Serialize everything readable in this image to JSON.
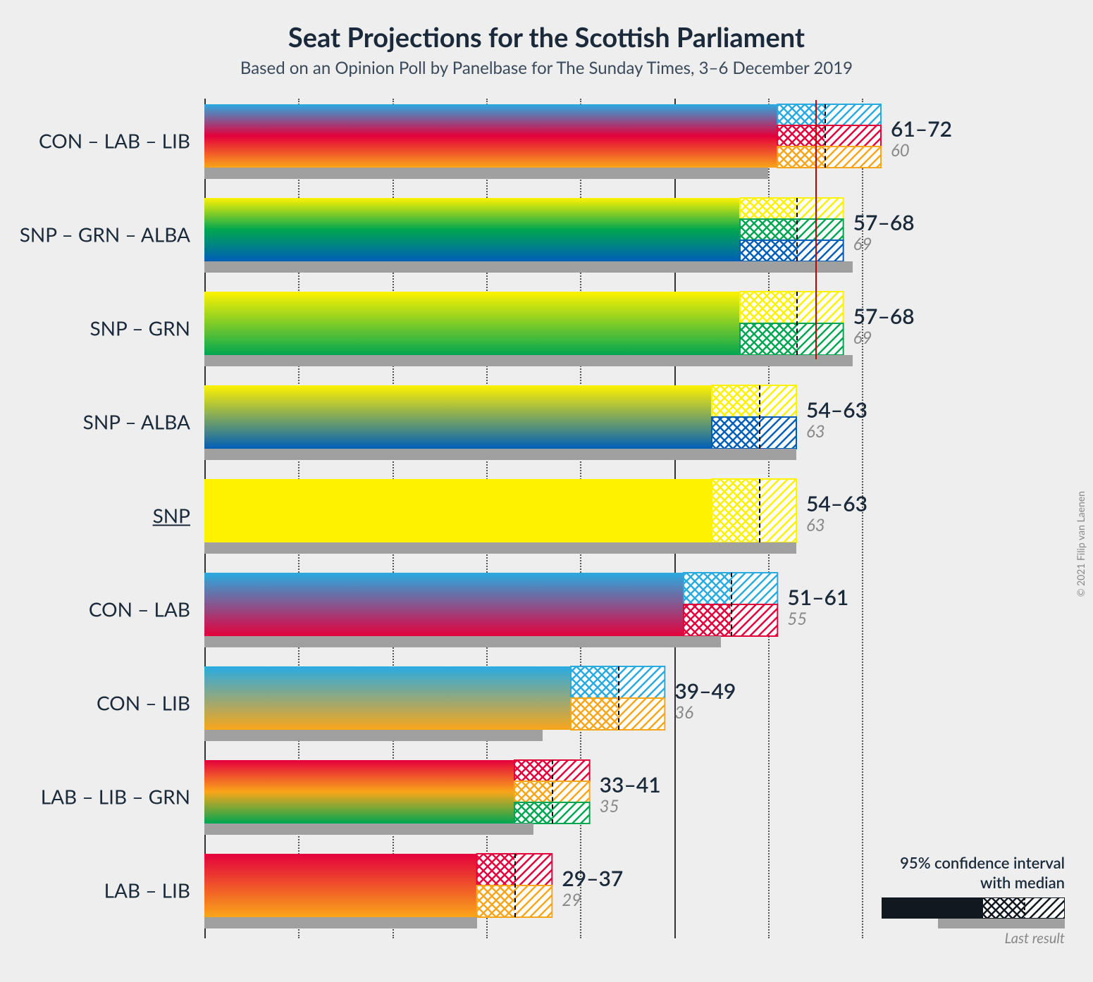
{
  "title": "Seat Projections for the Scottish Parliament",
  "subtitle": "Based on an Opinion Poll by Panelbase for The Sunday Times, 3–6 December 2019",
  "copyright": "© 2021 Filip van Laenen",
  "legend": {
    "title_l1": "95% confidence interval",
    "title_l2": "with median",
    "last_result": "Last result"
  },
  "chart": {
    "type": "bar",
    "x_max": 75,
    "gridlines": [
      0,
      10,
      20,
      30,
      40,
      50,
      60,
      70
    ],
    "majority_threshold": 65,
    "colors": {
      "CON": "#29abe2",
      "LAB": "#e4003b",
      "LIB": "#faa61a",
      "SNP": "#fff200",
      "GRN": "#00a651",
      "ALBA": "#005eb8",
      "grid": "#555555",
      "majority": "#c00000",
      "last_result": "#a0a0a0",
      "bg": "#eeeeee",
      "text": "#1a2a3a",
      "text_muted": "#888888"
    },
    "row_pitch": 133,
    "bar_stack_height": 90,
    "rows": [
      {
        "label": "CON – LAB – LIB",
        "parties": [
          "CON",
          "LAB",
          "LIB"
        ],
        "low": 61,
        "median": 66,
        "high": 72,
        "last": 60,
        "range_text": "61–72",
        "last_text": "60"
      },
      {
        "label": "SNP – GRN – ALBA",
        "parties": [
          "SNP",
          "GRN",
          "ALBA"
        ],
        "low": 57,
        "median": 63,
        "high": 68,
        "last": 69,
        "range_text": "57–68",
        "last_text": "69"
      },
      {
        "label": "SNP – GRN",
        "parties": [
          "SNP",
          "GRN"
        ],
        "low": 57,
        "median": 63,
        "high": 68,
        "last": 69,
        "range_text": "57–68",
        "last_text": "69"
      },
      {
        "label": "SNP – ALBA",
        "parties": [
          "SNP",
          "ALBA"
        ],
        "low": 54,
        "median": 59,
        "high": 63,
        "last": 63,
        "range_text": "54–63",
        "last_text": "63"
      },
      {
        "label": "SNP",
        "parties": [
          "SNP"
        ],
        "low": 54,
        "median": 59,
        "high": 63,
        "last": 63,
        "range_text": "54–63",
        "last_text": "63",
        "underline": true
      },
      {
        "label": "CON – LAB",
        "parties": [
          "CON",
          "LAB"
        ],
        "low": 51,
        "median": 56,
        "high": 61,
        "last": 55,
        "range_text": "51–61",
        "last_text": "55"
      },
      {
        "label": "CON – LIB",
        "parties": [
          "CON",
          "LIB"
        ],
        "low": 39,
        "median": 44,
        "high": 49,
        "last": 36,
        "range_text": "39–49",
        "last_text": "36"
      },
      {
        "label": "LAB – LIB – GRN",
        "parties": [
          "LAB",
          "LIB",
          "GRN"
        ],
        "low": 33,
        "median": 37,
        "high": 41,
        "last": 35,
        "range_text": "33–41",
        "last_text": "35"
      },
      {
        "label": "LAB – LIB",
        "parties": [
          "LAB",
          "LIB"
        ],
        "low": 29,
        "median": 33,
        "high": 37,
        "last": 29,
        "range_text": "29–37",
        "last_text": "29"
      }
    ]
  }
}
